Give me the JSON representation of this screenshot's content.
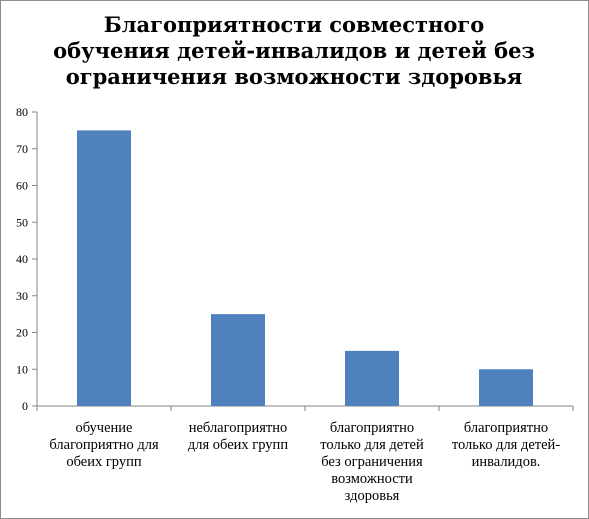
{
  "chart_data": {
    "type": "bar",
    "title_lines": [
      "Благоприятности совместного",
      "обучения детей-инвалидов и детей без",
      "ограничения возможности здоровья"
    ],
    "categories": [
      [
        "обучение",
        "благоприятно для",
        "обеих групп"
      ],
      [
        "неблагоприятно",
        "для обеих групп"
      ],
      [
        "благоприятно",
        "только для детей",
        "без ограничения",
        "возможности",
        "здоровья"
      ],
      [
        "благоприятно",
        "только для детей-",
        "инвалидов."
      ]
    ],
    "values": [
      75,
      25,
      15,
      10
    ],
    "ylim": [
      0,
      80
    ],
    "yticks": [
      0,
      10,
      20,
      30,
      40,
      50,
      60,
      70,
      80
    ],
    "bar_color": "#4f81bd",
    "grid": false,
    "legend": "none"
  }
}
